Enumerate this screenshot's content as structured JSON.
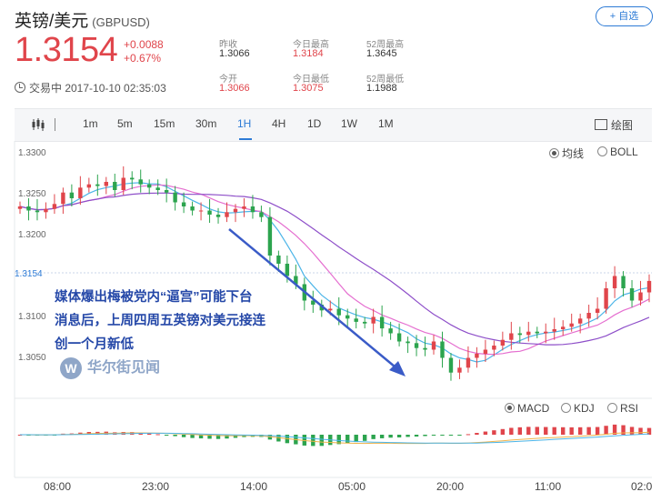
{
  "header": {
    "title": "英镑/美元",
    "code": "(GBPUSD)",
    "add_label": "+ 自选",
    "price": "1.3154",
    "change": "+0.0088",
    "change_pct": "+0.67%",
    "status": "交易中 2017-10-10 02:35:03"
  },
  "stats": [
    {
      "label": "昨收",
      "value": "1.3066",
      "red": false
    },
    {
      "label": "今日最高",
      "value": "1.3184",
      "red": true
    },
    {
      "label": "52周最高",
      "value": "1.3645",
      "red": false
    },
    {
      "label": "今开",
      "value": "1.3066",
      "red": true
    },
    {
      "label": "今日最低",
      "value": "1.3075",
      "red": true
    },
    {
      "label": "52周最低",
      "value": "1.1988",
      "red": false
    }
  ],
  "toolbar": {
    "timeframes": [
      "1m",
      "5m",
      "15m",
      "30m",
      "1H",
      "4H",
      "1D",
      "1W",
      "1M"
    ],
    "active": "1H",
    "draw_label": "绘图"
  },
  "indicators_top": {
    "ma_label": "均线",
    "boll_label": "BOLL",
    "selected": "ma"
  },
  "indicators_bottom": {
    "macd_label": "MACD",
    "kdj_label": "KDJ",
    "rsi_label": "RSI",
    "selected": "macd"
  },
  "chart_data": {
    "type": "candlestick",
    "y_ticks": [
      "1.3300",
      "1.3250",
      "1.3200",
      "1.3100",
      "1.3050"
    ],
    "last_price_label": "1.3154",
    "ylim": [
      1.3025,
      1.3325
    ],
    "x_ticks": [
      "08:00",
      "23:00",
      "14:00",
      "05:00",
      "20:00",
      "11:00",
      "02:0"
    ],
    "close": [
      1.3245,
      1.324,
      1.3238,
      1.3242,
      1.3248,
      1.3262,
      1.3255,
      1.3268,
      1.3272,
      1.327,
      1.3275,
      1.3265,
      1.328,
      1.3278,
      1.3272,
      1.3268,
      1.3265,
      1.3262,
      1.325,
      1.3245,
      1.324,
      1.324,
      1.3235,
      1.3232,
      1.3238,
      1.3242,
      1.3245,
      1.3238,
      1.3232,
      1.3185,
      1.3175,
      1.316,
      1.315,
      1.313,
      1.3125,
      1.3118,
      1.312,
      1.3112,
      1.3108,
      1.3104,
      1.3102,
      1.311,
      1.3096,
      1.309,
      1.308,
      1.3078,
      1.3072,
      1.307,
      1.308,
      1.306,
      1.3042,
      1.3048,
      1.306,
      1.3065,
      1.307,
      1.3075,
      1.3082,
      1.309,
      1.3088,
      1.3092,
      1.309,
      1.3092,
      1.3095,
      1.3098,
      1.3102,
      1.3108,
      1.3115,
      1.312,
      1.3145,
      1.316,
      1.3145,
      1.313,
      1.314,
      1.3154
    ],
    "annotation": [
      "媒体爆出梅被党内“逼宫”可能下台",
      "消息后，上周四周五英镑对美元接连",
      "创一个月新低"
    ],
    "watermark": "华尔街见闻"
  }
}
